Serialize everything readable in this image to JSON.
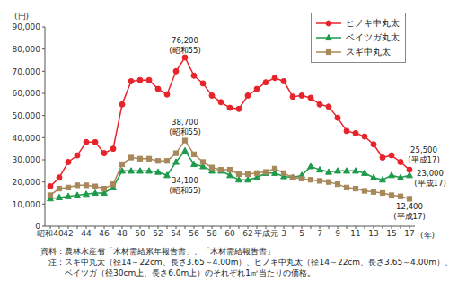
{
  "chart_data": {
    "type": "line",
    "y_label": "(円)",
    "x_label": "(年)",
    "categories": [
      "昭和40",
      null,
      "42",
      null,
      "44",
      null,
      "46",
      null,
      "48",
      null,
      "50",
      null,
      "52",
      null,
      "54",
      null,
      "56",
      null,
      "58",
      null,
      "60",
      null,
      "62",
      null,
      "平成元",
      null,
      "3",
      null,
      "5",
      null,
      "7",
      null,
      "9",
      null,
      "11",
      null,
      "13",
      null,
      "15",
      null,
      "17"
    ],
    "series": [
      {
        "name": "ヒノキ中丸太",
        "color": "#e8242b",
        "marker": "circle",
        "values": [
          18000,
          22000,
          29000,
          32000,
          38000,
          38000,
          33000,
          35000,
          55000,
          65500,
          66000,
          66000,
          62000,
          59500,
          70000,
          76200,
          68000,
          64500,
          59000,
          56000,
          53500,
          53000,
          59000,
          62000,
          65000,
          67000,
          65500,
          58500,
          59000,
          58000,
          55000,
          54000,
          49000,
          43000,
          42000,
          40500,
          37000,
          31000,
          32000,
          29000,
          25500
        ]
      },
      {
        "name": "ベイツガ丸太",
        "color": "#1e9a4b",
        "marker": "triangle",
        "values": [
          12500,
          13000,
          13500,
          14000,
          14500,
          15000,
          15000,
          17500,
          25000,
          25000,
          25000,
          25000,
          24500,
          23000,
          29000,
          34100,
          28000,
          27000,
          25000,
          25000,
          23000,
          21000,
          21000,
          22000,
          24000,
          24000,
          22500,
          22000,
          23000,
          27000,
          25500,
          24500,
          25000,
          25000,
          25000,
          24000,
          22000,
          21000,
          23000,
          22000,
          23000
        ]
      },
      {
        "name": "スギ中丸太",
        "color": "#a8885a",
        "marker": "square",
        "values": [
          14000,
          17000,
          17500,
          18500,
          18500,
          18000,
          17000,
          19000,
          28000,
          31000,
          30500,
          30500,
          29500,
          29500,
          33000,
          38700,
          32500,
          29000,
          26500,
          25500,
          25500,
          23500,
          23500,
          24000,
          24500,
          26000,
          24000,
          22000,
          21500,
          21000,
          20500,
          20000,
          19000,
          17500,
          17000,
          16000,
          15500,
          15000,
          14000,
          13500,
          12400
        ]
      }
    ],
    "ylim": [
      0,
      90000
    ],
    "yticks": [
      0,
      {
        "value": 10000,
        "label": "10,000"
      },
      {
        "value": 20000,
        "label": "20,000"
      },
      {
        "value": 30000,
        "label": "30,000"
      },
      {
        "value": 40000,
        "label": "40,000"
      },
      {
        "value": 50000,
        "label": "50,000"
      },
      {
        "value": 60000,
        "label": "60,000"
      },
      {
        "value": 70000,
        "label": "70,000"
      },
      {
        "value": 80000,
        "label": "80,000"
      },
      {
        "value": 90000,
        "label": "90,000"
      }
    ],
    "grid": false,
    "legend": "top-right",
    "annotations": [
      {
        "lines": [
          "76,200",
          "(昭和55)"
        ]
      },
      {
        "lines": [
          "38,700",
          "(昭和55)"
        ]
      },
      {
        "lines": [
          "34,100",
          "(昭和55)"
        ]
      },
      {
        "lines": [
          "25,500",
          "(平成17)"
        ]
      },
      {
        "lines": [
          "23,000",
          "(平成17)"
        ]
      },
      {
        "lines": [
          "12,400",
          "(平成17)"
        ]
      }
    ],
    "notes": [
      "資料：農林水産省「木材需給累年報告書」、「木材需給報告書」",
      "注：スギ中丸太（径14～22cm、長さ3.65～4.00m）、ヒノキ中丸太（径14～22cm、長さ3.65～4.00m）、",
      "ベイツガ（径30cm上、長さ6.0m上）のそれぞれ1㎥当たりの価格。"
    ]
  }
}
